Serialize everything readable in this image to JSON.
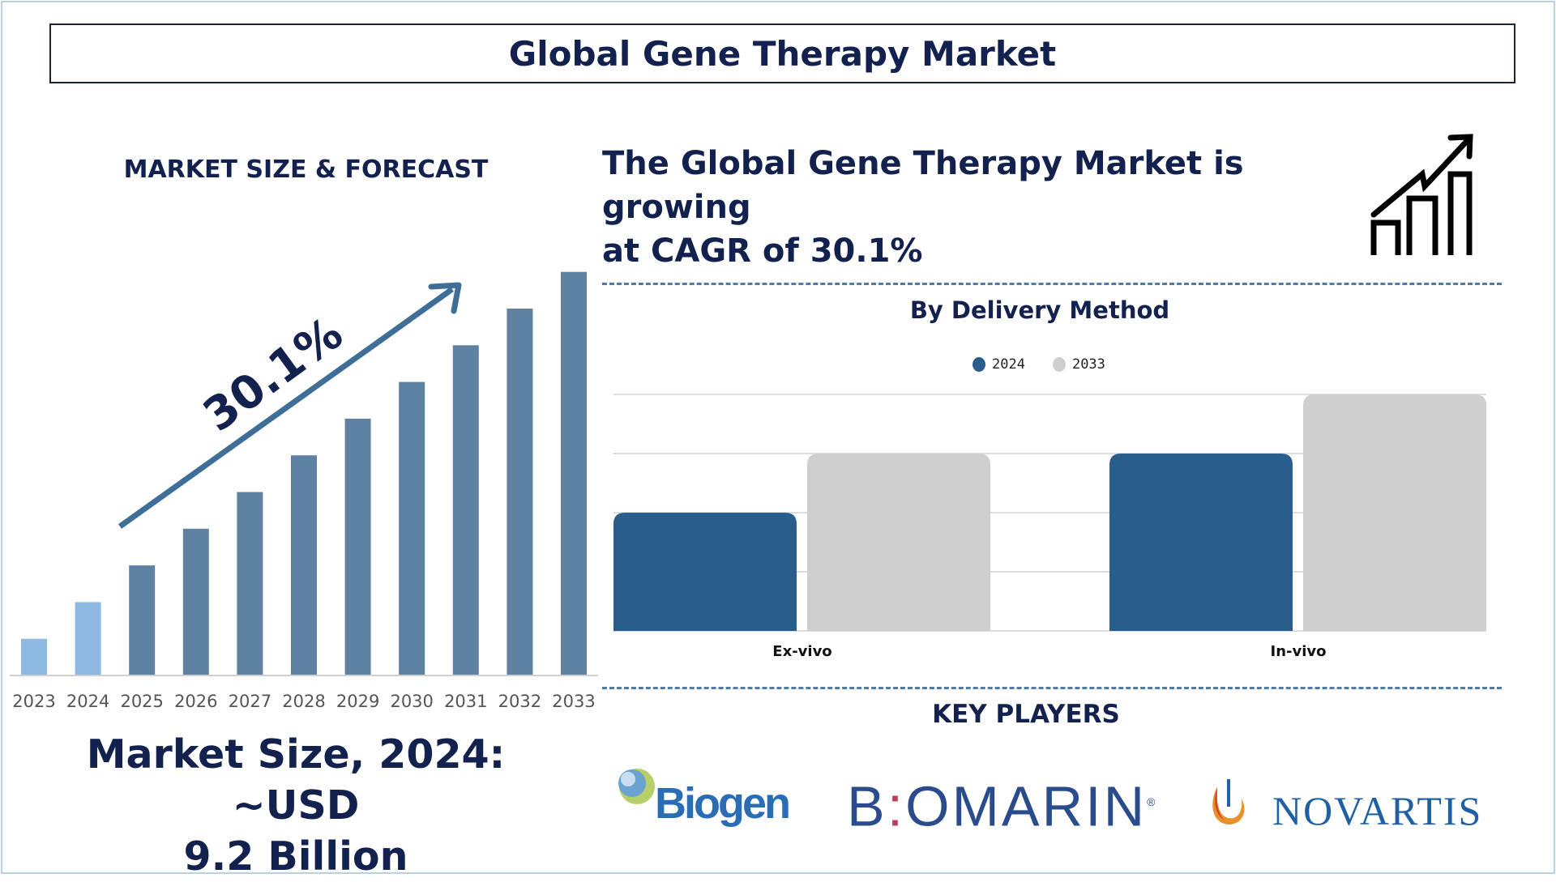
{
  "title": "Global Gene Therapy Market",
  "left": {
    "section_label": "MARKET SIZE & FORECAST",
    "cagr_label": "30.1%",
    "market_size_line1": "Market Size, 2024: ~USD",
    "market_size_line2": "9.2 Billion"
  },
  "headline": {
    "line1": "The Global Gene Therapy Market is growing",
    "line2": "at CAGR of 30.1%"
  },
  "key_players": {
    "label": "KEY PLAYERS",
    "logos": [
      "Biogen",
      "BIOMARIN",
      "NOVARTIS"
    ]
  },
  "colors": {
    "navy": "#13214f",
    "bar_past": "#8db9e2",
    "bar_forecast": "#5f82a3",
    "series_2024": "#295d8c",
    "series_2033": "#cfcfcf",
    "arrow": "#3f6f99"
  },
  "chart_data": [
    {
      "type": "bar",
      "categories": [
        "2023",
        "2024",
        "2025",
        "2026",
        "2027",
        "2028",
        "2029",
        "2030",
        "2031",
        "2032",
        "2033"
      ],
      "values": [
        1,
        2,
        3,
        4,
        5,
        6,
        7,
        8,
        9,
        10,
        11
      ],
      "title": "",
      "xlabel": "",
      "ylabel": "",
      "grid": false,
      "y_axis_shown": false
    },
    {
      "type": "bar",
      "title": "By Delivery Method",
      "categories": [
        "Ex-vivo",
        "In-vivo"
      ],
      "series": [
        {
          "name": "2024",
          "values": [
            2,
            3
          ]
        },
        {
          "name": "2033",
          "values": [
            3,
            4
          ]
        }
      ],
      "ylim": [
        0,
        4
      ],
      "grid": true,
      "legend": "top-center",
      "y_axis_shown": false
    }
  ]
}
